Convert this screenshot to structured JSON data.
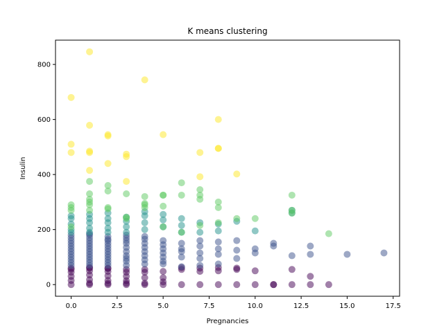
{
  "chart_data": {
    "type": "scatter",
    "title": "K means clustering",
    "xlabel": "Pregnancies",
    "ylabel": "Insulin",
    "xlim": [
      -0.85,
      17.85
    ],
    "ylim": [
      -42.3,
      888.3
    ],
    "xticks": [
      0.0,
      2.5,
      5.0,
      7.5,
      10.0,
      12.5,
      15.0,
      17.5
    ],
    "xtick_labels": [
      "0.0",
      "2.5",
      "5.0",
      "7.5",
      "10.0",
      "12.5",
      "15.0",
      "17.5"
    ],
    "yticks": [
      0,
      200,
      400,
      600,
      800
    ],
    "ytick_labels": [
      "0",
      "200",
      "400",
      "600",
      "800"
    ],
    "grid": false,
    "legend": false,
    "series": [
      {
        "color": "#440154",
        "x": [
          0,
          0,
          0,
          0,
          0,
          1,
          1,
          1,
          1,
          1,
          2,
          2,
          2,
          2,
          2,
          3,
          3,
          3,
          3,
          3,
          4,
          4,
          4,
          4,
          5,
          5,
          5,
          5,
          6,
          6,
          6,
          7,
          7,
          7,
          8,
          8,
          8,
          9,
          9,
          9,
          10,
          10,
          11,
          11,
          12,
          12,
          13,
          13,
          14,
          1,
          2,
          3,
          4,
          0,
          1,
          2
        ],
        "y": [
          0,
          15,
          30,
          45,
          55,
          0,
          18,
          35,
          50,
          60,
          0,
          15,
          32,
          48,
          58,
          0,
          14,
          30,
          45,
          55,
          0,
          25,
          45,
          55,
          0,
          10,
          25,
          48,
          0,
          55,
          62,
          0,
          48,
          60,
          0,
          50,
          62,
          0,
          55,
          60,
          0,
          50,
          0,
          0,
          0,
          55,
          0,
          30,
          0,
          5,
          5,
          5,
          5,
          60,
          62,
          60
        ]
      },
      {
        "color": "#3b528b",
        "x": [
          0,
          0,
          0,
          0,
          0,
          0,
          0,
          0,
          0,
          0,
          0,
          0,
          1,
          1,
          1,
          1,
          1,
          1,
          1,
          1,
          1,
          1,
          1,
          1,
          1,
          2,
          2,
          2,
          2,
          2,
          2,
          2,
          2,
          2,
          2,
          2,
          2,
          3,
          3,
          3,
          3,
          3,
          3,
          3,
          3,
          3,
          3,
          4,
          4,
          4,
          4,
          4,
          4,
          4,
          4,
          5,
          5,
          5,
          5,
          5,
          5,
          5,
          6,
          6,
          6,
          6,
          6,
          7,
          7,
          7,
          7,
          7,
          8,
          8,
          8,
          8,
          9,
          9,
          9,
          10,
          10,
          11,
          11,
          12,
          13,
          13,
          15,
          17
        ],
        "y": [
          70,
          80,
          90,
          100,
          110,
          120,
          130,
          140,
          150,
          160,
          170,
          180,
          70,
          80,
          90,
          100,
          110,
          120,
          130,
          140,
          150,
          160,
          170,
          180,
          185,
          70,
          80,
          90,
          100,
          110,
          120,
          130,
          140,
          150,
          160,
          165,
          175,
          70,
          85,
          95,
          105,
          120,
          135,
          150,
          160,
          170,
          180,
          75,
          90,
          105,
          120,
          135,
          150,
          165,
          175,
          75,
          85,
          100,
          115,
          130,
          145,
          160,
          65,
          100,
          120,
          130,
          150,
          70,
          95,
          115,
          140,
          160,
          75,
          110,
          130,
          155,
          95,
          125,
          160,
          115,
          130,
          140,
          150,
          105,
          140,
          110,
          110,
          115
        ]
      },
      {
        "color": "#21918c",
        "x": [
          0,
          0,
          0,
          0,
          0,
          1,
          1,
          1,
          1,
          1,
          2,
          2,
          2,
          2,
          2,
          3,
          3,
          3,
          3,
          4,
          4,
          4,
          4,
          5,
          5,
          5,
          6,
          6,
          6,
          7,
          7,
          8,
          8,
          9,
          10,
          12,
          12
        ],
        "y": [
          190,
          200,
          220,
          240,
          250,
          190,
          205,
          225,
          240,
          255,
          190,
          205,
          225,
          240,
          260,
          190,
          210,
          230,
          245,
          200,
          225,
          250,
          265,
          210,
          235,
          255,
          190,
          215,
          240,
          190,
          225,
          195,
          220,
          230,
          195,
          270,
          260
        ]
      },
      {
        "color": "#5ec962",
        "x": [
          0,
          0,
          0,
          0,
          1,
          1,
          1,
          1,
          1,
          1,
          2,
          2,
          2,
          2,
          3,
          3,
          3,
          4,
          4,
          4,
          4,
          5,
          5,
          5,
          5,
          6,
          6,
          6,
          7,
          7,
          7,
          7,
          8,
          8,
          8,
          9,
          10,
          12,
          12,
          12,
          14
        ],
        "y": [
          270,
          280,
          290,
          210,
          270,
          290,
          300,
          310,
          330,
          375,
          275,
          280,
          340,
          360,
          245,
          330,
          240,
          320,
          295,
          280,
          290,
          325,
          325,
          285,
          210,
          370,
          325,
          190,
          345,
          325,
          310,
          215,
          300,
          280,
          225,
          240,
          240,
          325,
          270,
          260,
          185
        ]
      },
      {
        "color": "#fde725",
        "x": [
          0,
          0,
          0,
          1,
          1,
          1,
          1,
          1,
          2,
          2,
          2,
          3,
          3,
          3,
          4,
          5,
          7,
          7,
          8,
          8,
          8,
          9
        ],
        "y": [
          680,
          510,
          480,
          846,
          579,
          485,
          480,
          415,
          545,
          540,
          440,
          474,
          465,
          375,
          744,
          545,
          480,
          392,
          600,
          495,
          495,
          402
        ]
      }
    ]
  }
}
